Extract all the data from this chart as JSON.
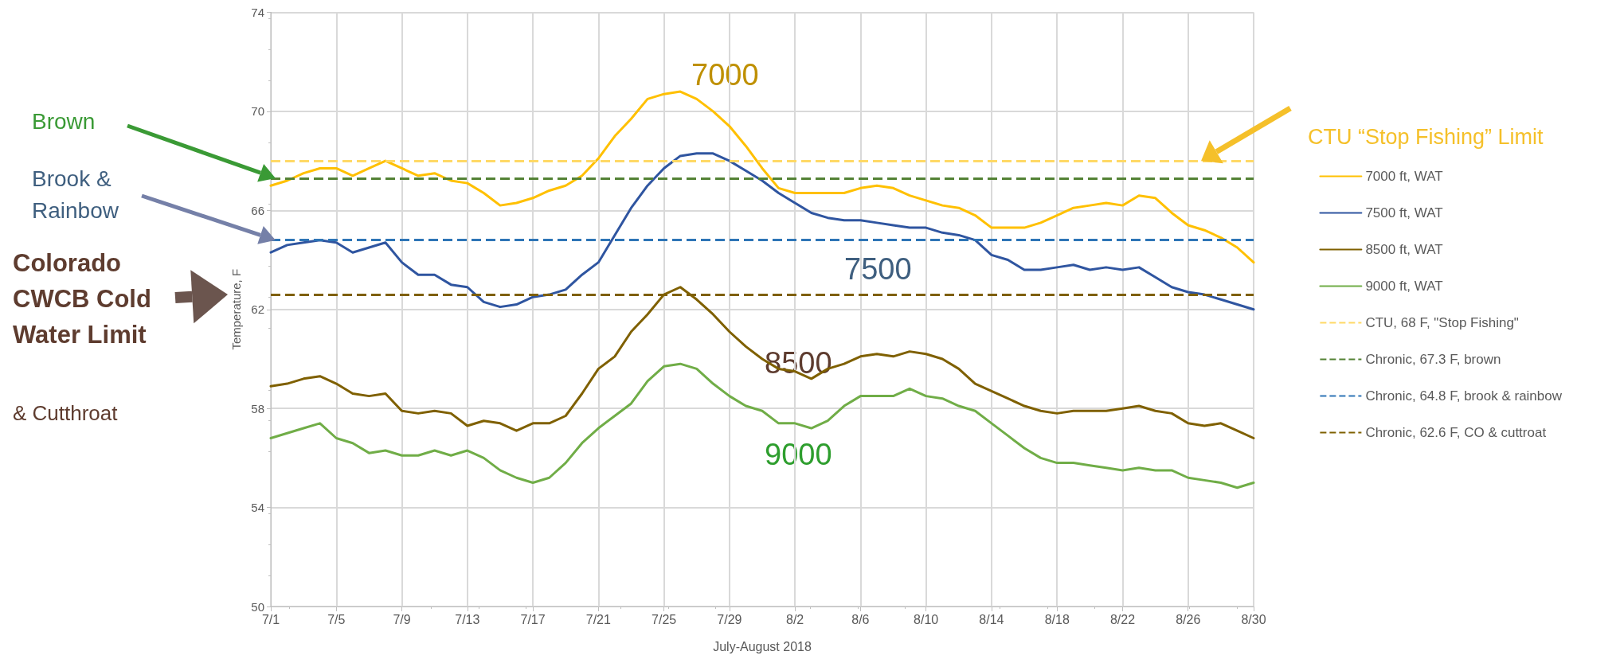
{
  "chart_data": {
    "type": "line",
    "xlabel": "July-August 2018",
    "ylabel": "Temperature, F",
    "x": [
      "2018-07-01",
      "2018-07-02",
      "2018-07-03",
      "2018-07-04",
      "2018-07-05",
      "2018-07-06",
      "2018-07-07",
      "2018-07-08",
      "2018-07-09",
      "2018-07-10",
      "2018-07-11",
      "2018-07-12",
      "2018-07-13",
      "2018-07-14",
      "2018-07-15",
      "2018-07-16",
      "2018-07-17",
      "2018-07-18",
      "2018-07-19",
      "2018-07-20",
      "2018-07-21",
      "2018-07-22",
      "2018-07-23",
      "2018-07-24",
      "2018-07-25",
      "2018-07-26",
      "2018-07-27",
      "2018-07-28",
      "2018-07-29",
      "2018-07-30",
      "2018-07-31",
      "2018-08-01",
      "2018-08-02",
      "2018-08-03",
      "2018-08-04",
      "2018-08-05",
      "2018-08-06",
      "2018-08-07",
      "2018-08-08",
      "2018-08-09",
      "2018-08-10",
      "2018-08-11",
      "2018-08-12",
      "2018-08-13",
      "2018-08-14",
      "2018-08-15",
      "2018-08-16",
      "2018-08-17",
      "2018-08-18",
      "2018-08-19",
      "2018-08-20",
      "2018-08-21",
      "2018-08-22",
      "2018-08-23",
      "2018-08-24",
      "2018-08-25",
      "2018-08-26",
      "2018-08-27",
      "2018-08-28",
      "2018-08-29",
      "2018-08-30"
    ],
    "series": [
      {
        "name": "7000 ft, WAT",
        "color": "#ffc000",
        "values": [
          67.0,
          67.2,
          67.5,
          67.7,
          67.7,
          67.4,
          67.7,
          68.0,
          67.7,
          67.4,
          67.5,
          67.2,
          67.1,
          66.7,
          66.2,
          66.3,
          66.5,
          66.8,
          67.0,
          67.4,
          68.1,
          69.0,
          69.7,
          70.5,
          70.7,
          70.8,
          70.5,
          70.0,
          69.4,
          68.6,
          67.7,
          66.9,
          66.7,
          66.7,
          66.7,
          66.7,
          66.9,
          67.0,
          66.9,
          66.6,
          66.4,
          66.2,
          66.1,
          65.8,
          65.3,
          65.3,
          65.3,
          65.5,
          65.8,
          66.1,
          66.2,
          66.3,
          66.2,
          66.6,
          66.5,
          65.9,
          65.4,
          65.2,
          64.9,
          64.5,
          63.9
        ]
      },
      {
        "name": "7500 ft, WAT",
        "color": "#2f55a0",
        "values": [
          64.3,
          64.6,
          64.7,
          64.8,
          64.7,
          64.3,
          64.5,
          64.7,
          63.9,
          63.4,
          63.4,
          63.0,
          62.9,
          62.3,
          62.1,
          62.2,
          62.5,
          62.6,
          62.8,
          63.4,
          63.9,
          65.0,
          66.1,
          67.0,
          67.7,
          68.2,
          68.3,
          68.3,
          68.0,
          67.6,
          67.2,
          66.7,
          66.3,
          65.9,
          65.7,
          65.6,
          65.6,
          65.5,
          65.4,
          65.3,
          65.3,
          65.1,
          65.0,
          64.8,
          64.2,
          64.0,
          63.6,
          63.6,
          63.7,
          63.8,
          63.6,
          63.7,
          63.6,
          63.7,
          63.3,
          62.9,
          62.7,
          62.6,
          62.4,
          62.2,
          62.0
        ]
      },
      {
        "name": "8500 ft, WAT",
        "color": "#7f6000",
        "values": [
          58.9,
          59.0,
          59.2,
          59.3,
          59.0,
          58.6,
          58.5,
          58.6,
          57.9,
          57.8,
          57.9,
          57.8,
          57.3,
          57.5,
          57.4,
          57.1,
          57.4,
          57.4,
          57.7,
          58.6,
          59.6,
          60.1,
          61.1,
          61.8,
          62.6,
          62.9,
          62.4,
          61.8,
          61.1,
          60.5,
          60.0,
          59.6,
          59.5,
          59.2,
          59.6,
          59.8,
          60.1,
          60.2,
          60.1,
          60.3,
          60.2,
          60.0,
          59.6,
          59.0,
          58.7,
          58.4,
          58.1,
          57.9,
          57.8,
          57.9,
          57.9,
          57.9,
          58.0,
          58.1,
          57.9,
          57.8,
          57.4,
          57.3,
          57.4,
          57.1,
          56.8
        ]
      },
      {
        "name": "9000 ft, WAT",
        "color": "#70ad47",
        "values": [
          56.8,
          57.0,
          57.2,
          57.4,
          56.8,
          56.6,
          56.2,
          56.3,
          56.1,
          56.1,
          56.3,
          56.1,
          56.3,
          56.0,
          55.5,
          55.2,
          55.0,
          55.2,
          55.8,
          56.6,
          57.2,
          57.7,
          58.2,
          59.1,
          59.7,
          59.8,
          59.6,
          59.0,
          58.5,
          58.1,
          57.9,
          57.4,
          57.4,
          57.2,
          57.5,
          58.1,
          58.5,
          58.5,
          58.5,
          58.8,
          58.5,
          58.4,
          58.1,
          57.9,
          57.4,
          56.9,
          56.4,
          56.0,
          55.8,
          55.8,
          55.7,
          55.6,
          55.5,
          55.6,
          55.5,
          55.5,
          55.2,
          55.1,
          55.0,
          54.8,
          55.0
        ]
      }
    ],
    "ref_lines": [
      {
        "axis": "y",
        "value": 68,
        "label": "CTU, 68 F, \"Stop Fishing\"",
        "color": "#ffd966",
        "line_style": "dashed"
      },
      {
        "axis": "y",
        "value": 67.3,
        "label": "Chronic, 67.3 F, brown",
        "color": "#548235",
        "line_style": "dashed"
      },
      {
        "axis": "y",
        "value": 64.8,
        "label": "Chronic, 64.8 F, brook & rainbow",
        "color": "#2e75b6",
        "line_style": "dashed"
      },
      {
        "axis": "y",
        "value": 62.6,
        "label": "Chronic, 62.6 F, CO & cuttroat",
        "color": "#7f6000",
        "line_style": "dashed"
      }
    ],
    "annotations": [
      "7000",
      "7500",
      "8500",
      "9000",
      "Brown",
      "Brook & Rainbow",
      "Colorado CWCB Cold Water Limit",
      "& Cutthroat",
      "CTU “Stop Fishing” Limit"
    ],
    "xlim": [
      "2018-07-01",
      "2018-08-30"
    ],
    "xticks": [
      {
        "value": "2018-07-01",
        "label": "7/1"
      },
      {
        "value": "2018-07-05",
        "label": "7/5"
      },
      {
        "value": "2018-07-09",
        "label": "7/9"
      },
      {
        "value": "2018-07-13",
        "label": "7/13"
      },
      {
        "value": "2018-07-17",
        "label": "7/17"
      },
      {
        "value": "2018-07-21",
        "label": "7/21"
      },
      {
        "value": "2018-07-25",
        "label": "7/25"
      },
      {
        "value": "2018-07-29",
        "label": "7/29"
      },
      {
        "value": "2018-08-02",
        "label": "8/2"
      },
      {
        "value": "2018-08-06",
        "label": "8/6"
      },
      {
        "value": "2018-08-10",
        "label": "8/10"
      },
      {
        "value": "2018-08-14",
        "label": "8/14"
      },
      {
        "value": "2018-08-18",
        "label": "8/18"
      },
      {
        "value": "2018-08-22",
        "label": "8/22"
      },
      {
        "value": "2018-08-26",
        "label": "8/26"
      },
      {
        "value": "2018-08-30",
        "label": "8/30"
      }
    ],
    "ylim": [
      50,
      74
    ],
    "yticks": [
      50,
      54,
      58,
      62,
      66,
      70,
      74
    ],
    "grid": true,
    "legend": "right",
    "marker": "none",
    "line_style": "solid"
  }
}
